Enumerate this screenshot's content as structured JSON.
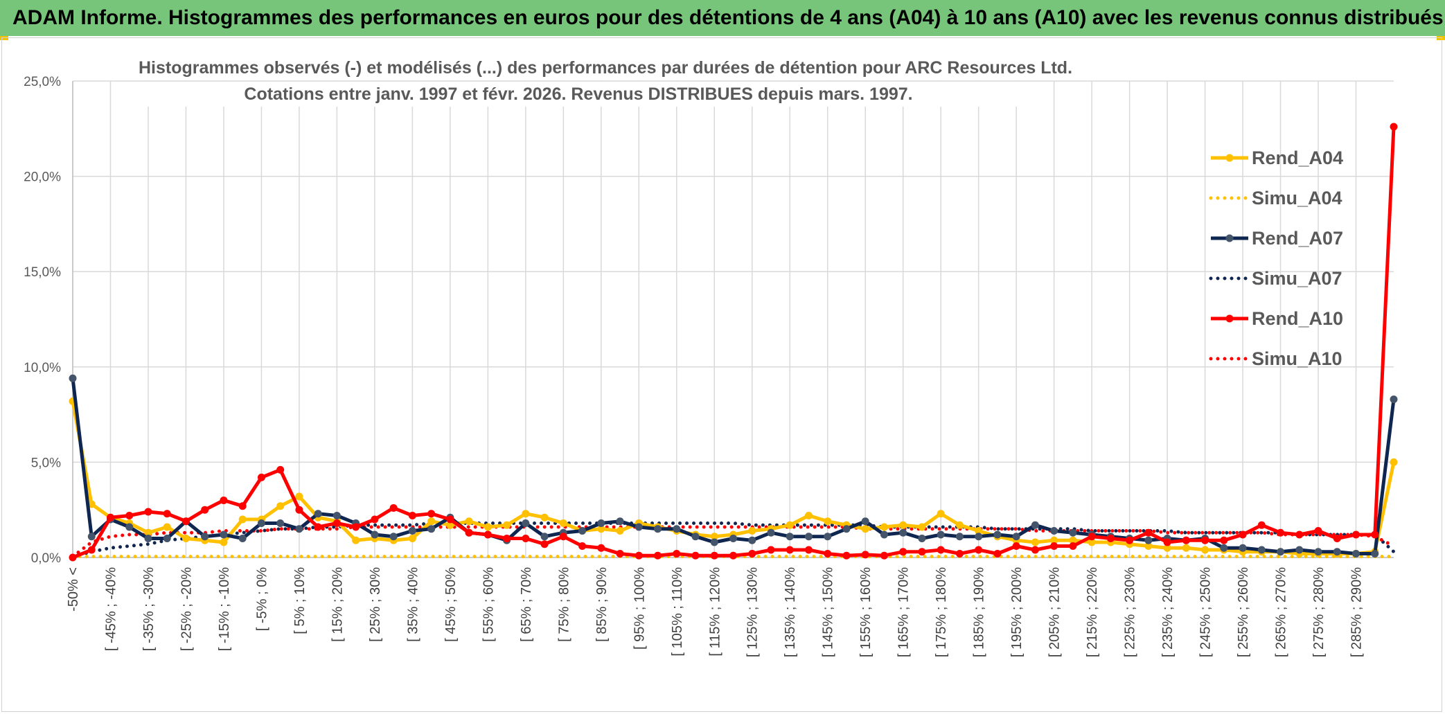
{
  "header": {
    "title": "ADAM Informe. Histogrammes des performances en euros pour des détentions de 4 ans (A04) à 10 ans (A10) avec les revenus connus distribués"
  },
  "chart_data": {
    "type": "line",
    "title": "Histogrammes observés (-) et modélisés (...) des performances par durées de détention pour ARC Resources Ltd.",
    "subtitle": "Cotations entre janv. 1997 et févr. 2026. Revenus DISTRIBUES depuis mars. 1997.",
    "xlabel": "",
    "ylabel": "",
    "ylim": [
      0,
      25
    ],
    "y_ticks": [
      "0,0%",
      "5,0%",
      "10,0%",
      "15,0%",
      "20,0%",
      "25,0%"
    ],
    "x_tick_labels": [
      "-50% <",
      "[ -45% ; -40%",
      "[ -35% ; -30%",
      "[ -25% ; -20%",
      "[ -15% ; -10%",
      "[ -5% ; 0%",
      "[ 5% ; 10%",
      "[ 15% ; 20%",
      "[ 25% ; 30%",
      "[ 35% ; 40%",
      "[ 45% ; 50%",
      "[ 55% ; 60%",
      "[ 65% ; 70%",
      "[ 75% ; 80%",
      "[ 85% ; 90%",
      "[ 95% ; 100%",
      "[ 105% ; 110%",
      "[ 115% ; 120%",
      "[ 125% ; 130%",
      "[ 135% ; 140%",
      "[ 145% ; 150%",
      "[ 155% ; 160%",
      "[ 165% ; 170%",
      "[ 175% ; 180%",
      "[ 185% ; 190%",
      "[ 195% ; 200%",
      "[ 205% ; 210%",
      "[ 215% ; 220%",
      "[ 225% ; 230%",
      "[ 235% ; 240%",
      "[ 245% ; 250%",
      "[ 255% ; 260%",
      "[ 265% ; 270%",
      "[ 275% ; 280%",
      "[ 285% ; 290%"
    ],
    "grid": true,
    "legend_position": "right",
    "num_categories": 71,
    "series": [
      {
        "name": "Rend_A04",
        "style": "solid",
        "color": "#ffc000",
        "values": [
          8.2,
          2.8,
          2.1,
          1.8,
          1.3,
          1.6,
          1.0,
          0.9,
          0.8,
          2.0,
          2.0,
          2.7,
          3.2,
          2.1,
          1.9,
          0.9,
          1.0,
          0.9,
          1.0,
          1.9,
          1.7,
          1.9,
          1.6,
          1.7,
          2.3,
          2.1,
          1.8,
          1.4,
          1.5,
          1.4,
          1.8,
          1.6,
          1.4,
          1.2,
          1.1,
          1.2,
          1.4,
          1.5,
          1.7,
          2.2,
          1.9,
          1.7,
          1.5,
          1.6,
          1.7,
          1.6,
          2.3,
          1.7,
          1.4,
          1.1,
          0.9,
          0.8,
          0.9,
          0.9,
          0.8,
          0.8,
          0.7,
          0.6,
          0.5,
          0.5,
          0.4,
          0.4,
          0.3,
          0.3,
          0.3,
          0.2,
          0.2,
          0.2,
          0.2,
          0.3,
          5.0
        ]
      },
      {
        "name": "Simu_A04",
        "style": "dotted",
        "color": "#ffc000",
        "values": [
          0.05,
          0.05,
          0.05,
          0.05,
          0.05,
          0.05,
          0.05,
          0.05,
          0.05,
          0.05,
          0.05,
          0.05,
          0.05,
          0.05,
          0.05,
          0.05,
          0.05,
          0.05,
          0.05,
          0.05,
          0.05,
          0.05,
          0.05,
          0.05,
          0.05,
          0.05,
          0.05,
          0.05,
          0.05,
          0.05,
          0.05,
          0.05,
          0.05,
          0.05,
          0.05,
          0.05,
          0.05,
          0.05,
          0.05,
          0.05,
          0.05,
          0.05,
          0.05,
          0.05,
          0.05,
          0.05,
          0.05,
          0.05,
          0.05,
          0.05,
          0.05,
          0.05,
          0.05,
          0.05,
          0.05,
          0.05,
          0.05,
          0.05,
          0.05,
          0.05,
          0.05,
          0.05,
          0.05,
          0.05,
          0.05,
          0.05,
          0.05,
          0.05,
          0.05,
          0.05,
          0.05
        ]
      },
      {
        "name": "Rend_A07",
        "style": "solid",
        "color": "#0f2650",
        "values": [
          9.4,
          1.1,
          2.0,
          1.6,
          1.0,
          1.0,
          1.9,
          1.1,
          1.2,
          1.0,
          1.8,
          1.8,
          1.5,
          2.3,
          2.2,
          1.8,
          1.2,
          1.1,
          1.4,
          1.5,
          2.1,
          1.3,
          1.2,
          0.9,
          1.8,
          1.1,
          1.3,
          1.4,
          1.8,
          1.9,
          1.6,
          1.5,
          1.5,
          1.1,
          0.8,
          1.0,
          0.9,
          1.3,
          1.1,
          1.1,
          1.1,
          1.5,
          1.9,
          1.2,
          1.3,
          1.0,
          1.2,
          1.1,
          1.1,
          1.2,
          1.1,
          1.7,
          1.4,
          1.3,
          1.2,
          1.1,
          1.0,
          0.9,
          1.0,
          0.9,
          1.0,
          0.5,
          0.5,
          0.4,
          0.3,
          0.4,
          0.3,
          0.3,
          0.2,
          0.2,
          8.3
        ]
      },
      {
        "name": "Simu_A07",
        "style": "dotted",
        "color": "#0f2650",
        "values": [
          0.05,
          0.3,
          0.5,
          0.6,
          0.7,
          0.9,
          1.0,
          1.1,
          1.2,
          1.3,
          1.4,
          1.5,
          1.5,
          1.6,
          1.6,
          1.7,
          1.7,
          1.7,
          1.7,
          1.8,
          1.8,
          1.8,
          1.8,
          1.8,
          1.8,
          1.8,
          1.8,
          1.8,
          1.8,
          1.8,
          1.8,
          1.8,
          1.8,
          1.8,
          1.8,
          1.8,
          1.7,
          1.7,
          1.7,
          1.7,
          1.7,
          1.7,
          1.7,
          1.6,
          1.6,
          1.6,
          1.6,
          1.6,
          1.6,
          1.5,
          1.5,
          1.5,
          1.5,
          1.5,
          1.4,
          1.4,
          1.4,
          1.4,
          1.4,
          1.3,
          1.3,
          1.3,
          1.3,
          1.3,
          1.3,
          1.2,
          1.2,
          1.2,
          1.2,
          1.2,
          0.3
        ]
      },
      {
        "name": "Rend_A10",
        "style": "solid",
        "color": "#ff0000",
        "values": [
          0.0,
          0.4,
          2.1,
          2.2,
          2.4,
          2.3,
          1.9,
          2.5,
          3.0,
          2.7,
          4.2,
          4.6,
          2.5,
          1.6,
          1.8,
          1.6,
          2.0,
          2.6,
          2.2,
          2.3,
          2.0,
          1.3,
          1.2,
          1.0,
          1.0,
          0.7,
          1.1,
          0.6,
          0.5,
          0.2,
          0.1,
          0.1,
          0.2,
          0.1,
          0.1,
          0.1,
          0.2,
          0.4,
          0.4,
          0.4,
          0.2,
          0.1,
          0.15,
          0.1,
          0.3,
          0.3,
          0.4,
          0.2,
          0.4,
          0.2,
          0.6,
          0.4,
          0.6,
          0.6,
          1.1,
          1.0,
          0.9,
          1.3,
          0.8,
          0.9,
          0.9,
          0.9,
          1.2,
          1.7,
          1.3,
          1.2,
          1.4,
          1.0,
          1.2,
          1.2,
          22.6
        ]
      },
      {
        "name": "Simu_A10",
        "style": "dotted",
        "color": "#ff0000",
        "values": [
          0.05,
          0.8,
          1.1,
          1.2,
          1.2,
          1.3,
          1.3,
          1.3,
          1.4,
          1.4,
          1.4,
          1.5,
          1.5,
          1.5,
          1.5,
          1.6,
          1.6,
          1.6,
          1.6,
          1.6,
          1.6,
          1.6,
          1.6,
          1.6,
          1.6,
          1.6,
          1.6,
          1.6,
          1.6,
          1.6,
          1.6,
          1.6,
          1.6,
          1.6,
          1.6,
          1.6,
          1.6,
          1.6,
          1.6,
          1.6,
          1.6,
          1.6,
          1.5,
          1.5,
          1.5,
          1.5,
          1.5,
          1.5,
          1.5,
          1.5,
          1.5,
          1.4,
          1.4,
          1.4,
          1.4,
          1.4,
          1.4,
          1.4,
          1.3,
          1.3,
          1.3,
          1.3,
          1.3,
          1.3,
          1.2,
          1.2,
          1.2,
          1.2,
          1.2,
          1.1,
          0.6
        ]
      }
    ]
  }
}
